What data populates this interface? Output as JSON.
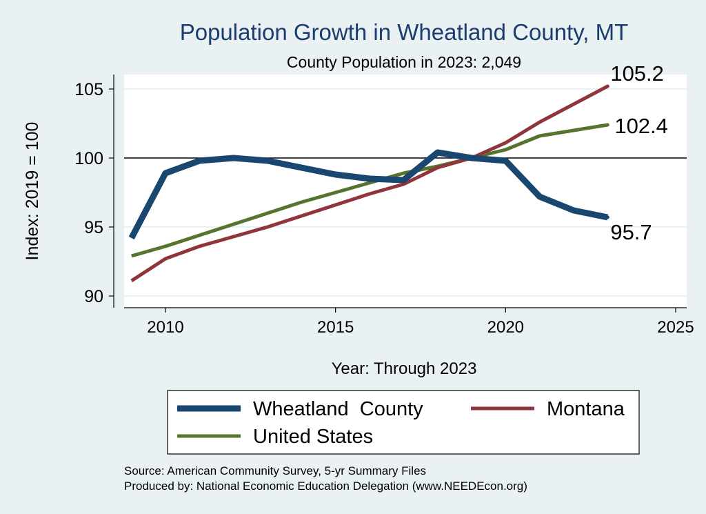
{
  "chart_data": {
    "type": "line",
    "title": "Population Growth in Wheatland County, MT",
    "subtitle": "County Population in 2023: 2,049",
    "xlabel": "Year: Through 2023",
    "ylabel": "Index: 2019 = 100",
    "xlim": [
      2009,
      2025
    ],
    "ylim": [
      90,
      106
    ],
    "x_ticks": [
      "2010",
      "2015",
      "2020",
      "2025"
    ],
    "y_ticks": [
      "90",
      "95",
      "100",
      "105"
    ],
    "reference_line": 100,
    "x": [
      2009,
      2010,
      2011,
      2012,
      2013,
      2014,
      2015,
      2016,
      2017,
      2018,
      2019,
      2020,
      2021,
      2022,
      2023
    ],
    "series": [
      {
        "name": "Wheatland  County",
        "color": "#1a476f",
        "width": 9,
        "values": [
          94.2,
          98.9,
          99.8,
          100.0,
          99.8,
          99.3,
          98.8,
          98.5,
          98.4,
          100.4,
          100.0,
          99.8,
          97.2,
          96.2,
          95.7
        ],
        "end_label": "95.7"
      },
      {
        "name": "Montana",
        "color": "#90353b",
        "width": 5,
        "values": [
          91.1,
          92.7,
          93.6,
          94.3,
          95.0,
          95.8,
          96.6,
          97.4,
          98.1,
          99.3,
          100.0,
          101.1,
          102.6,
          103.9,
          105.2
        ],
        "end_label": "105.2"
      },
      {
        "name": "United States",
        "color": "#55752f",
        "width": 5,
        "values": [
          92.9,
          93.6,
          94.4,
          95.2,
          96.0,
          96.8,
          97.5,
          98.2,
          98.9,
          99.4,
          100.0,
          100.6,
          101.6,
          102.0,
          102.4
        ],
        "end_label": "102.4"
      }
    ],
    "legend": [
      {
        "label": "Wheatland  County"
      },
      {
        "label": "Montana"
      },
      {
        "label": "United States"
      }
    ],
    "source": "Source: American Community Survey, 5-yr Summary Files",
    "producer": "Produced by: National Economic Education Delegation (www.NEEDEcon.org)"
  }
}
